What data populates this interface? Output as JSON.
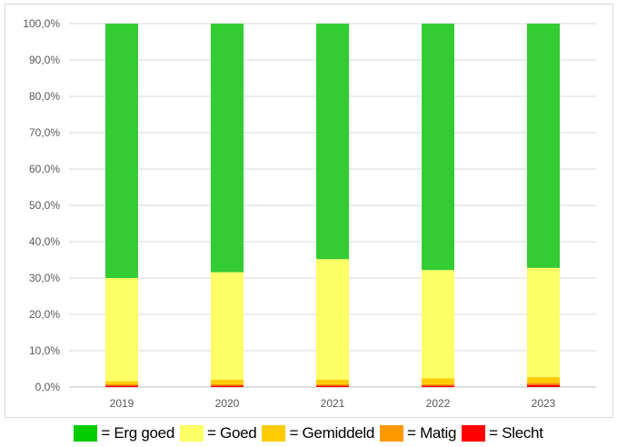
{
  "chart_data": {
    "type": "bar",
    "stacked": true,
    "categories": [
      "2019",
      "2020",
      "2021",
      "2022",
      "2023"
    ],
    "series": [
      {
        "name": "= Slecht",
        "color": "#ff0000",
        "values": [
          0.4,
          0.4,
          0.4,
          0.4,
          0.6
        ]
      },
      {
        "name": "= Matig",
        "color": "#ff9900",
        "values": [
          0.4,
          0.4,
          0.4,
          0.4,
          0.6
        ]
      },
      {
        "name": "= Gemiddeld",
        "color": "#ffcc00",
        "values": [
          0.8,
          1.2,
          1.2,
          1.6,
          1.6
        ]
      },
      {
        "name": "= Goed",
        "color": "#ffff66",
        "values": [
          28.4,
          29.6,
          33.2,
          29.8,
          30.0
        ]
      },
      {
        "name": "= Erg goed",
        "color": "#33cc33",
        "values": [
          70.0,
          68.4,
          64.8,
          67.8,
          67.2
        ]
      }
    ],
    "yticks": [
      "0,0%",
      "10,0%",
      "20,0%",
      "30,0%",
      "40,0%",
      "50,0%",
      "60,0%",
      "70,0%",
      "80,0%",
      "90,0%",
      "100,0%"
    ],
    "ylim": [
      0,
      100
    ],
    "grid": true,
    "legend_order": [
      "= Erg goed",
      "= Goed",
      "= Gemiddeld",
      "= Matig",
      "= Slecht"
    ],
    "legend_colors": [
      "#00cc00",
      "#ffff66",
      "#ffcc00",
      "#ff9900",
      "#ff0000"
    ],
    "legend_position": "bottom"
  }
}
